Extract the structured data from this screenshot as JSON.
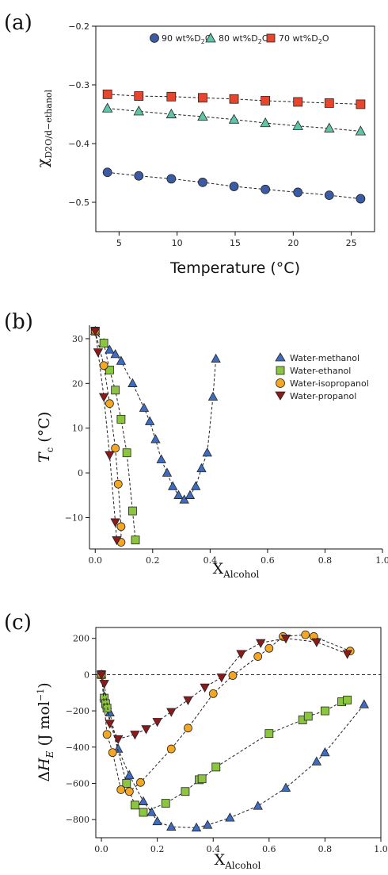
{
  "panels": {
    "a": {
      "letter": "(a)"
    },
    "b": {
      "letter": "(b)"
    },
    "c": {
      "letter": "(c)"
    }
  },
  "chart_data": [
    {
      "id": "a",
      "type": "line",
      "xlabel": "Temperature (°C)",
      "ylabel": "χD2O/d−ethanol",
      "xlim": [
        3,
        27
      ],
      "ylim": [
        -0.55,
        -0.2
      ],
      "xticks": [
        5,
        10,
        15,
        20,
        25
      ],
      "yticks": [
        -0.5,
        -0.4,
        -0.3,
        -0.2
      ],
      "xtick_labels": [
        "5",
        "10",
        "15",
        "20",
        "25"
      ],
      "ytick_labels": [
        "−0.5",
        "−0.4",
        "−0.3",
        "−0.2"
      ],
      "legend_position": "top",
      "grid": false,
      "series": [
        {
          "name": "90 wt%D2O",
          "marker": "circle",
          "color": "#3b5ba5",
          "x": [
            4,
            6.7,
            9.5,
            12.2,
            14.9,
            17.6,
            20.4,
            23.1,
            25.8
          ],
          "y": [
            -0.449,
            -0.455,
            -0.46,
            -0.466,
            -0.473,
            -0.478,
            -0.483,
            -0.488,
            -0.494
          ]
        },
        {
          "name": "80 wt%D2O",
          "marker": "triangle",
          "color": "#5fc4a8",
          "x": [
            4,
            6.7,
            9.5,
            12.2,
            14.9,
            17.6,
            20.4,
            23.1,
            25.8
          ],
          "y": [
            -0.34,
            -0.345,
            -0.35,
            -0.354,
            -0.359,
            -0.365,
            -0.37,
            -0.374,
            -0.379
          ]
        },
        {
          "name": "70 wt%D2O",
          "marker": "square",
          "color": "#e8452c",
          "x": [
            4,
            6.7,
            9.5,
            12.2,
            14.9,
            17.6,
            20.4,
            23.1,
            25.8
          ],
          "y": [
            -0.316,
            -0.319,
            -0.32,
            -0.322,
            -0.324,
            -0.327,
            -0.329,
            -0.331,
            -0.333
          ]
        }
      ]
    },
    {
      "id": "b",
      "type": "line",
      "xlabel": "XAlcohol",
      "ylabel": "Tc (°C)",
      "xlim": [
        -0.02,
        1.0
      ],
      "ylim": [
        -17,
        33
      ],
      "xticks": [
        0.0,
        0.2,
        0.4,
        0.6,
        0.8,
        1.0
      ],
      "yticks": [
        -10,
        0,
        10,
        20,
        30
      ],
      "xtick_labels": [
        "0.0",
        "0.2",
        "0.4",
        "0.6",
        "0.8",
        "1.0"
      ],
      "ytick_labels": [
        "−10",
        "0",
        "10",
        "20",
        "30"
      ],
      "legend_position": "top-right",
      "grid": false,
      "series": [
        {
          "name": "Water-methanol",
          "marker": "triangle",
          "color": "#3d6cc0",
          "x": [
            0.0,
            0.03,
            0.05,
            0.07,
            0.09,
            0.13,
            0.17,
            0.19,
            0.21,
            0.23,
            0.25,
            0.27,
            0.29,
            0.31,
            0.33,
            0.35,
            0.37,
            0.39,
            0.41,
            0.42
          ],
          "y": [
            31.7,
            29.0,
            27.5,
            26.5,
            25.0,
            20.0,
            14.5,
            11.5,
            7.5,
            3.0,
            0.0,
            -3.0,
            -5.0,
            -6.0,
            -5.0,
            -3.0,
            1.0,
            4.5,
            17.0,
            25.5
          ]
        },
        {
          "name": "Water-ethanol",
          "marker": "square",
          "color": "#8cc63f",
          "x": [
            0.0,
            0.03,
            0.05,
            0.07,
            0.09,
            0.11,
            0.13,
            0.14
          ],
          "y": [
            31.7,
            29.0,
            23.0,
            18.5,
            12.0,
            4.5,
            -8.5,
            -15.0
          ]
        },
        {
          "name": "Water-isopropanol",
          "marker": "circle",
          "color": "#f5a623",
          "x": [
            0.0,
            0.03,
            0.05,
            0.07,
            0.08,
            0.09,
            0.09
          ],
          "y": [
            31.7,
            24.0,
            15.5,
            5.5,
            -2.5,
            -12.0,
            -15.5
          ]
        },
        {
          "name": "Water-propanol",
          "marker": "triangle-down",
          "color": "#8b1a1a",
          "x": [
            0.0,
            0.01,
            0.03,
            0.05,
            0.07,
            0.075
          ],
          "y": [
            31.7,
            27.0,
            17.0,
            4.0,
            -11.0,
            -15.0
          ]
        }
      ]
    },
    {
      "id": "c",
      "type": "line",
      "xlabel": "XAlcohol",
      "ylabel": "ΔHE (J mol−1)",
      "xlim": [
        -0.02,
        1.0
      ],
      "ylim": [
        -900,
        260
      ],
      "xticks": [
        0.0,
        0.2,
        0.4,
        0.6,
        0.8,
        1.0
      ],
      "yticks": [
        -800,
        -600,
        -400,
        -200,
        0,
        200
      ],
      "xtick_labels": [
        "0.0",
        "0.2",
        "0.4",
        "0.6",
        "0.8",
        "1.0"
      ],
      "ytick_labels": [
        "−800",
        "−600",
        "−400",
        "−200",
        "0",
        "200"
      ],
      "zero_line": true,
      "grid": false,
      "series": [
        {
          "name": "Water-methanol",
          "marker": "triangle",
          "color": "#3d6cc0",
          "x": [
            0.0,
            0.01,
            0.02,
            0.03,
            0.06,
            0.1,
            0.15,
            0.18,
            0.2,
            0.25,
            0.34,
            0.38,
            0.46,
            0.56,
            0.66,
            0.77,
            0.8,
            0.94
          ],
          "y": [
            0,
            -120,
            -170,
            -210,
            -410,
            -555,
            -700,
            -760,
            -810,
            -840,
            -845,
            -830,
            -790,
            -725,
            -625,
            -480,
            -430,
            -165
          ]
        },
        {
          "name": "Water-ethanol",
          "marker": "square",
          "color": "#8cc63f",
          "x": [
            0.0,
            0.01,
            0.015,
            0.02,
            0.09,
            0.12,
            0.15,
            0.23,
            0.3,
            0.35,
            0.36,
            0.41,
            0.6,
            0.72,
            0.74,
            0.8,
            0.86,
            0.88
          ],
          "y": [
            0,
            -130,
            -160,
            -185,
            -600,
            -720,
            -760,
            -710,
            -645,
            -580,
            -575,
            -510,
            -325,
            -250,
            -230,
            -200,
            -150,
            -140
          ]
        },
        {
          "name": "Water-isopropanol",
          "marker": "circle",
          "color": "#f5a623",
          "x": [
            0.0,
            0.02,
            0.04,
            0.07,
            0.1,
            0.14,
            0.25,
            0.31,
            0.4,
            0.47,
            0.56,
            0.6,
            0.65,
            0.73,
            0.76,
            0.89
          ],
          "y": [
            0,
            -330,
            -430,
            -635,
            -645,
            -595,
            -410,
            -295,
            -105,
            -5,
            100,
            145,
            210,
            220,
            210,
            130
          ]
        },
        {
          "name": "Water-propanol",
          "marker": "triangle-down",
          "color": "#8b1a1a",
          "x": [
            0.0,
            0.01,
            0.03,
            0.06,
            0.12,
            0.16,
            0.2,
            0.25,
            0.31,
            0.37,
            0.43,
            0.5,
            0.57,
            0.66,
            0.77,
            0.88
          ],
          "y": [
            0,
            -50,
            -270,
            -355,
            -330,
            -300,
            -260,
            -205,
            -140,
            -70,
            -15,
            115,
            175,
            200,
            180,
            115
          ]
        }
      ]
    }
  ]
}
